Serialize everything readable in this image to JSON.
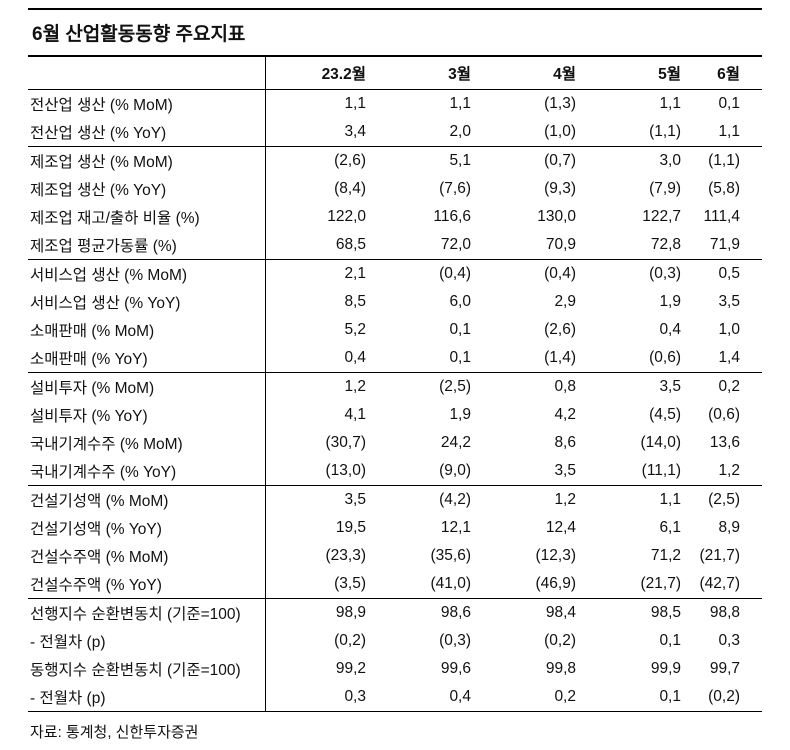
{
  "title": "6월 산업활동동향 주요지표",
  "footer": {
    "source": "자료: 통계청, 신한투자증권"
  },
  "colors": {
    "text": "#111111",
    "rule": "#000000",
    "background": "#ffffff"
  },
  "table": {
    "columns": [
      "23.2월",
      "3월",
      "4월",
      "5월",
      "6월"
    ],
    "groups": [
      {
        "rows": [
          {
            "label": "전산업 생산 (% MoM)",
            "values": [
              "1,1",
              "1,1",
              "(1,3)",
              "1,1",
              "0,1"
            ]
          },
          {
            "label": "전산업 생산 (% YoY)",
            "values": [
              "3,4",
              "2,0",
              "(1,0)",
              "(1,1)",
              "1,1"
            ]
          }
        ]
      },
      {
        "rows": [
          {
            "label": "제조업 생산 (% MoM)",
            "values": [
              "(2,6)",
              "5,1",
              "(0,7)",
              "3,0",
              "(1,1)"
            ]
          },
          {
            "label": "제조업 생산 (% YoY)",
            "values": [
              "(8,4)",
              "(7,6)",
              "(9,3)",
              "(7,9)",
              "(5,8)"
            ]
          },
          {
            "label": "제조업 재고/출하 비율 (%)",
            "values": [
              "122,0",
              "116,6",
              "130,0",
              "122,7",
              "111,4"
            ]
          },
          {
            "label": "제조업 평균가동률 (%)",
            "values": [
              "68,5",
              "72,0",
              "70,9",
              "72,8",
              "71,9"
            ]
          }
        ]
      },
      {
        "rows": [
          {
            "label": "서비스업 생산 (% MoM)",
            "values": [
              "2,1",
              "(0,4)",
              "(0,4)",
              "(0,3)",
              "0,5"
            ]
          },
          {
            "label": "서비스업 생산 (% YoY)",
            "values": [
              "8,5",
              "6,0",
              "2,9",
              "1,9",
              "3,5"
            ]
          },
          {
            "label": "소매판매 (% MoM)",
            "values": [
              "5,2",
              "0,1",
              "(2,6)",
              "0,4",
              "1,0"
            ]
          },
          {
            "label": "소매판매 (% YoY)",
            "values": [
              "0,4",
              "0,1",
              "(1,4)",
              "(0,6)",
              "1,4"
            ]
          }
        ]
      },
      {
        "rows": [
          {
            "label": "설비투자 (% MoM)",
            "values": [
              "1,2",
              "(2,5)",
              "0,8",
              "3,5",
              "0,2"
            ]
          },
          {
            "label": "설비투자 (% YoY)",
            "values": [
              "4,1",
              "1,9",
              "4,2",
              "(4,5)",
              "(0,6)"
            ]
          },
          {
            "label": "국내기계수주 (% MoM)",
            "values": [
              "(30,7)",
              "24,2",
              "8,6",
              "(14,0)",
              "13,6"
            ]
          },
          {
            "label": "국내기계수주 (% YoY)",
            "values": [
              "(13,0)",
              "(9,0)",
              "3,5",
              "(11,1)",
              "1,2"
            ]
          }
        ]
      },
      {
        "rows": [
          {
            "label": "건설기성액 (% MoM)",
            "values": [
              "3,5",
              "(4,2)",
              "1,2",
              "1,1",
              "(2,5)"
            ]
          },
          {
            "label": "건설기성액 (% YoY)",
            "values": [
              "19,5",
              "12,1",
              "12,4",
              "6,1",
              "8,9"
            ]
          },
          {
            "label": "건설수주액 (% MoM)",
            "values": [
              "(23,3)",
              "(35,6)",
              "(12,3)",
              "71,2",
              "(21,7)"
            ]
          },
          {
            "label": "건설수주액 (% YoY)",
            "values": [
              "(3,5)",
              "(41,0)",
              "(46,9)",
              "(21,7)",
              "(42,7)"
            ]
          }
        ]
      },
      {
        "rows": [
          {
            "label": "선행지수 순환변동치 (기준=100)",
            "values": [
              "98,9",
              "98,6",
              "98,4",
              "98,5",
              "98,8"
            ]
          },
          {
            "label": "- 전월차 (p)",
            "values": [
              "(0,2)",
              "(0,3)",
              "(0,2)",
              "0,1",
              "0,3"
            ]
          },
          {
            "label": "동행지수 순환변동치 (기준=100)",
            "values": [
              "99,2",
              "99,6",
              "99,8",
              "99,9",
              "99,7"
            ]
          },
          {
            "label": "- 전월차 (p)",
            "values": [
              "0,3",
              "0,4",
              "0,2",
              "0,1",
              "(0,2)"
            ]
          }
        ]
      }
    ]
  }
}
